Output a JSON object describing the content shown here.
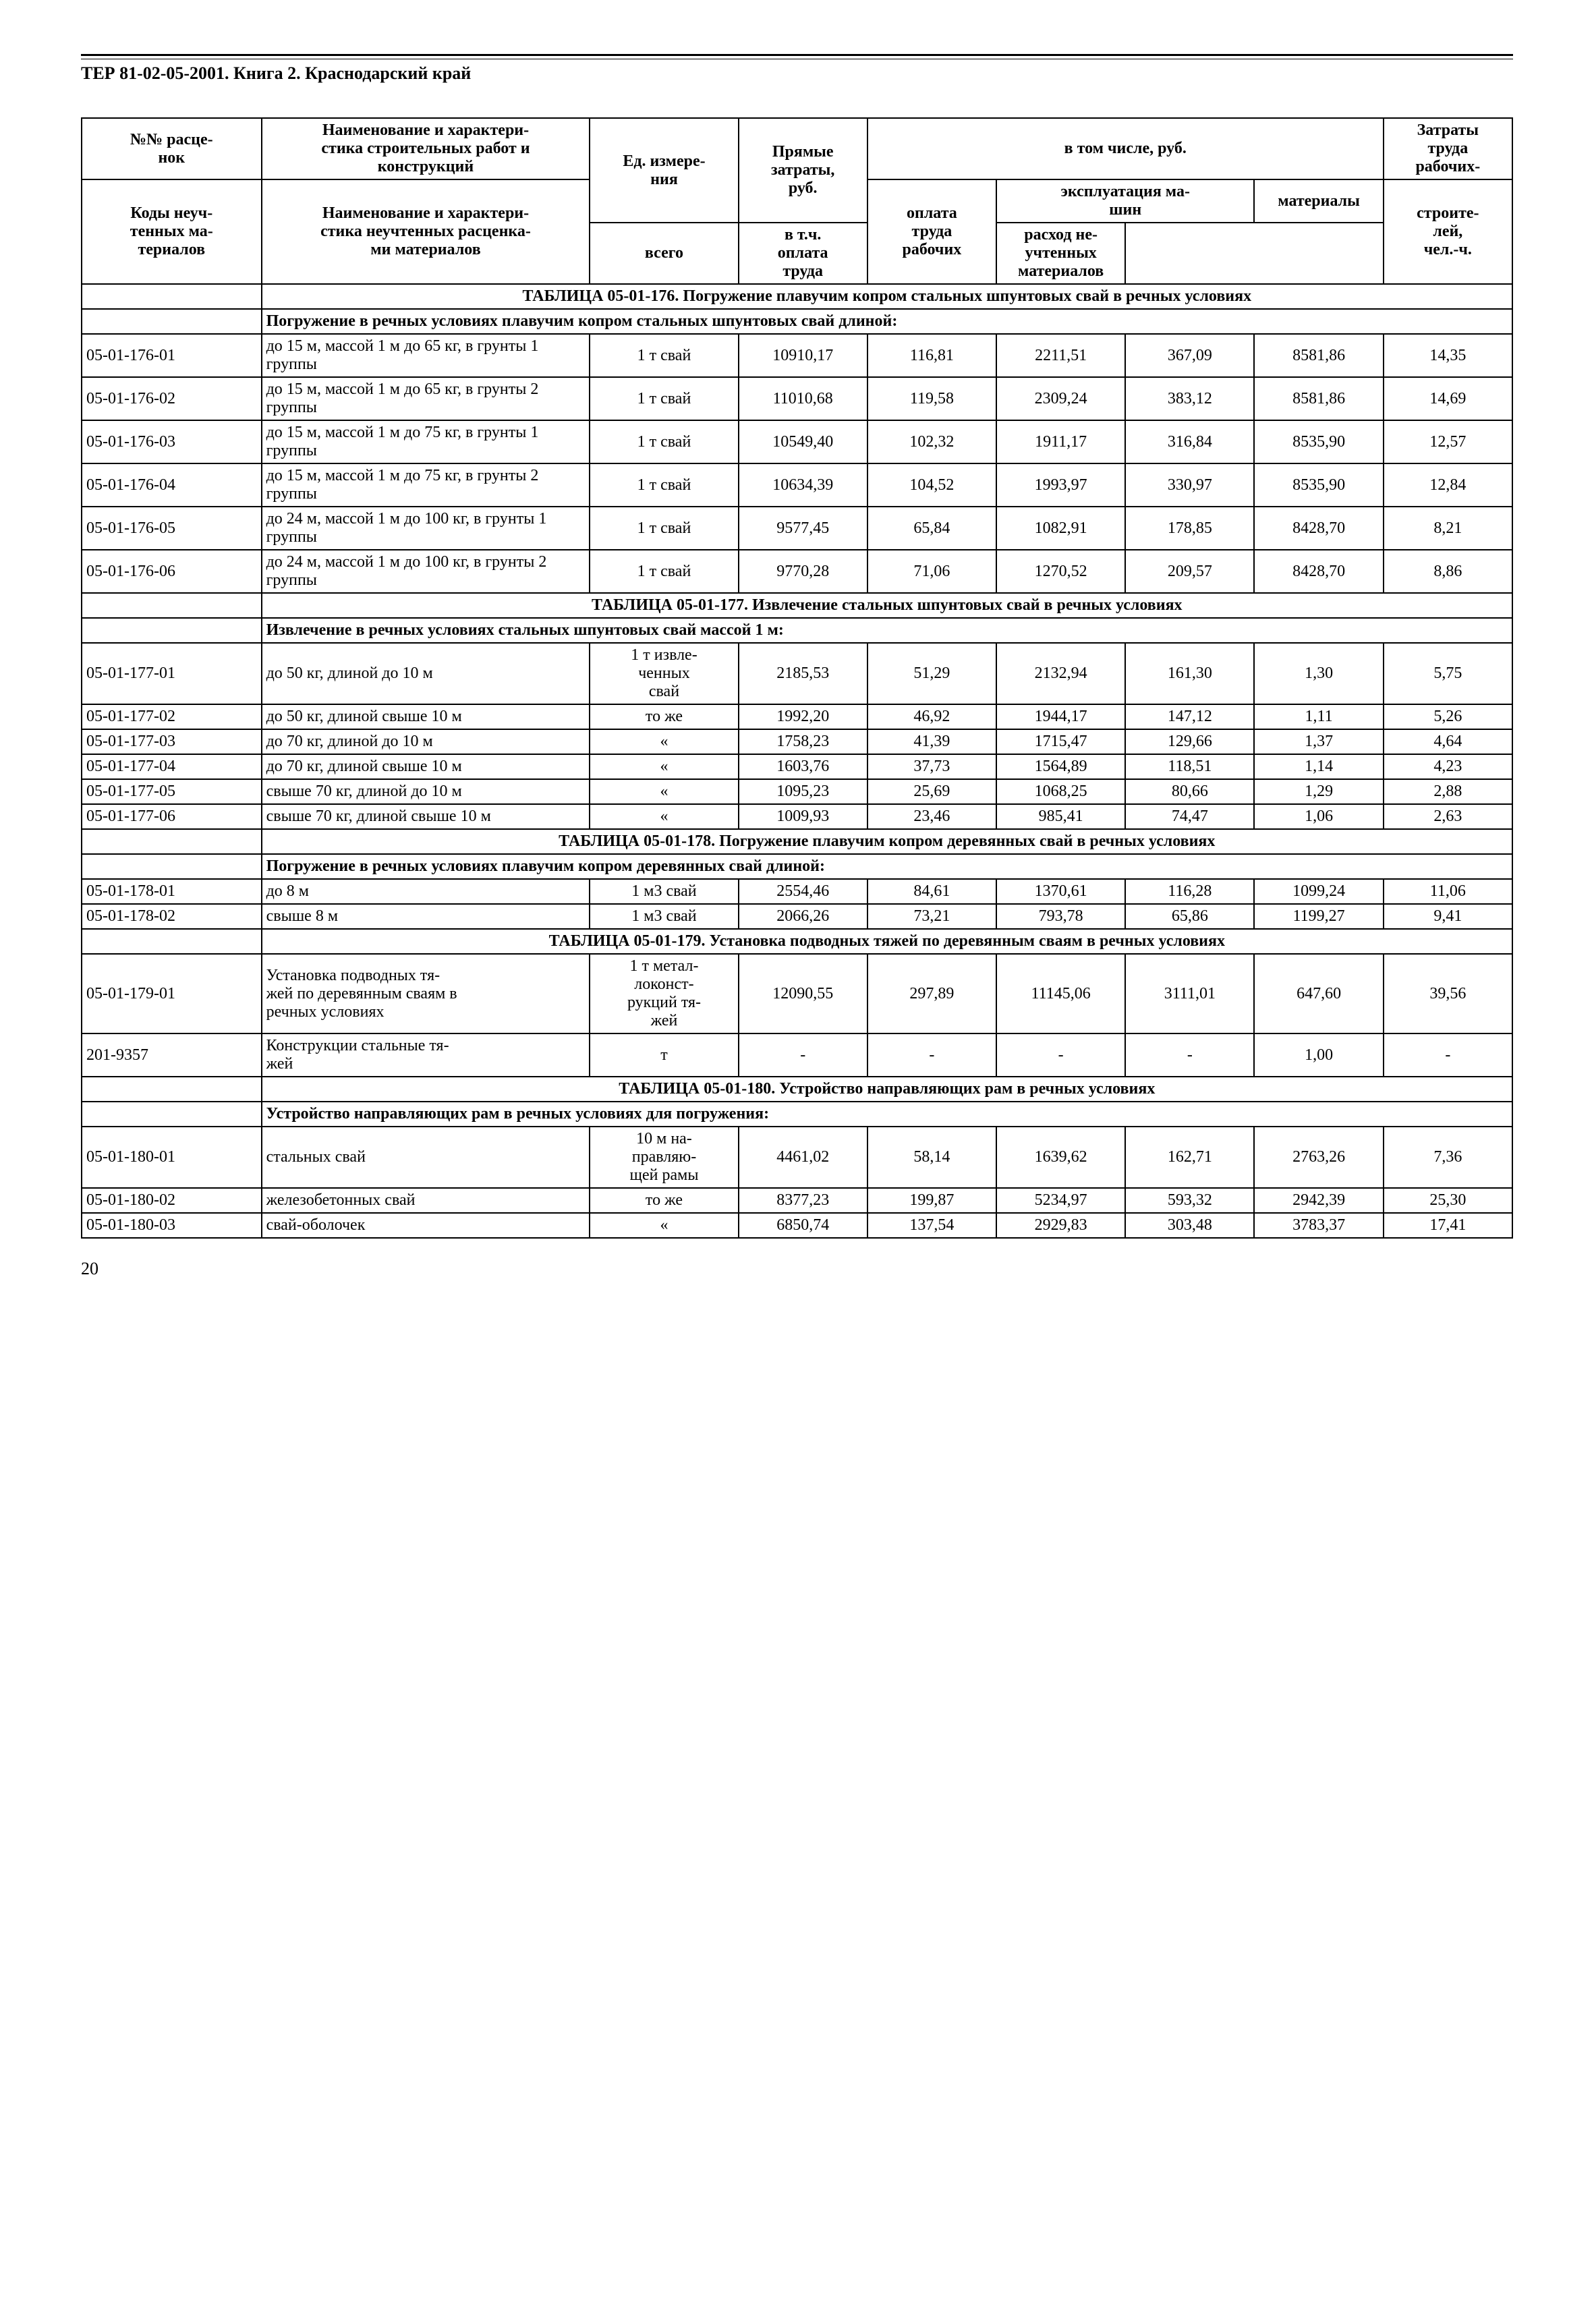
{
  "document_title": "ТЕР 81-02-05-2001. Книга 2.  Краснодарский край",
  "page_number": "20",
  "header": {
    "col1_a": "№№ расце-\nнок",
    "col1_b": "Коды неуч-\nтенных ма-\nтериалов",
    "col2_a": "Наименование и характери-\nстика строительных работ и\nконструкций",
    "col2_b": "Наименование и характери-\nстика неучтенных расценка-\nми материалов",
    "col3": "Ед. измере-\nния",
    "col4": "Прямые\nзатраты,\nруб.",
    "group": "в том числе, руб.",
    "col5": "оплата\nтруда\nрабочих",
    "exp_group": "эксплуатация ма-\nшин",
    "col6": "всего",
    "col7": "в т.ч.\nоплата\nтруда",
    "col8": "материалы",
    "col8b": "расход не-\nучтенных\nматериалов",
    "col9a": "Затраты\nтруда\nрабочих-",
    "col9b": "строите-\nлей,\nчел.-ч."
  },
  "tables": [
    {
      "title": "ТАБЛИЦА  05-01-176. Погружение плавучим копром стальных шпунтовых свай в речных условиях",
      "subtitle": "Погружение в речных условиях плавучим копром стальных шпунтовых свай длиной:",
      "rows": [
        {
          "code": "05-01-176-01",
          "desc": "до 15 м, массой 1 м до 65 кг, в грунты 1 группы",
          "unit": "1 т свай",
          "v": [
            "10910,17",
            "116,81",
            "2211,51",
            "367,09",
            "8581,86",
            "14,35"
          ]
        },
        {
          "code": "05-01-176-02",
          "desc": "до 15 м, массой 1 м до 65 кг, в грунты 2 группы",
          "unit": "1 т свай",
          "v": [
            "11010,68",
            "119,58",
            "2309,24",
            "383,12",
            "8581,86",
            "14,69"
          ]
        },
        {
          "code": "05-01-176-03",
          "desc": "до 15 м, массой 1 м до 75 кг, в грунты 1 группы",
          "unit": "1 т свай",
          "v": [
            "10549,40",
            "102,32",
            "1911,17",
            "316,84",
            "8535,90",
            "12,57"
          ]
        },
        {
          "code": "05-01-176-04",
          "desc": "до 15 м, массой 1 м до 75 кг, в грунты 2 группы",
          "unit": "1 т свай",
          "v": [
            "10634,39",
            "104,52",
            "1993,97",
            "330,97",
            "8535,90",
            "12,84"
          ]
        },
        {
          "code": "05-01-176-05",
          "desc": "до 24 м, массой 1 м до 100 кг, в грунты 1 группы",
          "unit": "1 т свай",
          "v": [
            "9577,45",
            "65,84",
            "1082,91",
            "178,85",
            "8428,70",
            "8,21"
          ]
        },
        {
          "code": "05-01-176-06",
          "desc": "до 24 м, массой 1 м до 100 кг, в грунты 2 группы",
          "unit": "1 т свай",
          "v": [
            "9770,28",
            "71,06",
            "1270,52",
            "209,57",
            "8428,70",
            "8,86"
          ]
        }
      ]
    },
    {
      "title": "ТАБЛИЦА  05-01-177. Извлечение стальных шпунтовых свай в речных условиях",
      "subtitle": "Извлечение в речных условиях стальных шпунтовых свай массой 1 м:",
      "rows": [
        {
          "code": "05-01-177-01",
          "desc": "до 50 кг, длиной до 10 м",
          "unit": "1 т извле-\nченных\nсвай",
          "v": [
            "2185,53",
            "51,29",
            "2132,94",
            "161,30",
            "1,30",
            "5,75"
          ]
        },
        {
          "code": "05-01-177-02",
          "desc": "до 50 кг, длиной свыше 10 м",
          "unit": "то же",
          "v": [
            "1992,20",
            "46,92",
            "1944,17",
            "147,12",
            "1,11",
            "5,26"
          ]
        },
        {
          "code": "05-01-177-03",
          "desc": "до 70 кг, длиной до 10 м",
          "unit": "«",
          "v": [
            "1758,23",
            "41,39",
            "1715,47",
            "129,66",
            "1,37",
            "4,64"
          ]
        },
        {
          "code": "05-01-177-04",
          "desc": "до 70 кг, длиной свыше 10 м",
          "unit": "«",
          "v": [
            "1603,76",
            "37,73",
            "1564,89",
            "118,51",
            "1,14",
            "4,23"
          ]
        },
        {
          "code": "05-01-177-05",
          "desc": "свыше 70 кг, длиной до 10 м",
          "unit": "«",
          "v": [
            "1095,23",
            "25,69",
            "1068,25",
            "80,66",
            "1,29",
            "2,88"
          ]
        },
        {
          "code": "05-01-177-06",
          "desc": "свыше 70 кг, длиной свыше 10 м",
          "unit": "«",
          "v": [
            "1009,93",
            "23,46",
            "985,41",
            "74,47",
            "1,06",
            "2,63"
          ]
        }
      ]
    },
    {
      "title": "ТАБЛИЦА  05-01-178. Погружение плавучим копром деревянных свай в речных условиях",
      "subtitle": "Погружение в речных условиях плавучим копром деревянных свай длиной:",
      "rows": [
        {
          "code": "05-01-178-01",
          "desc": "до 8 м",
          "unit": "1 м3 свай",
          "v": [
            "2554,46",
            "84,61",
            "1370,61",
            "116,28",
            "1099,24",
            "11,06"
          ]
        },
        {
          "code": "05-01-178-02",
          "desc": "свыше 8 м",
          "unit": "1 м3 свай",
          "v": [
            "2066,26",
            "73,21",
            "793,78",
            "65,86",
            "1199,27",
            "9,41"
          ]
        }
      ]
    },
    {
      "title": "ТАБЛИЦА  05-01-179. Установка подводных тяжей по деревянным сваям в речных условиях",
      "subtitle": null,
      "rows": [
        {
          "code": "05-01-179-01",
          "desc": "Установка подводных тя-\nжей по деревянным сваям в\nречных условиях",
          "unit": "1 т метал-\nлоконст-\nрукций тя-\nжей",
          "v": [
            "12090,55",
            "297,89",
            "11145,06",
            "3111,01",
            "647,60",
            "39,56"
          ]
        },
        {
          "code": "201-9357",
          "desc": "Конструкции стальные тя-\nжей",
          "unit": "т",
          "v": [
            "-",
            "-",
            "-",
            "-",
            "1,00",
            "-"
          ]
        }
      ]
    },
    {
      "title": "ТАБЛИЦА  05-01-180. Устройство направляющих рам в речных условиях",
      "subtitle": "Устройство направляющих рам в речных условиях для погружения:",
      "rows": [
        {
          "code": "05-01-180-01",
          "desc": "стальных свай",
          "unit": "10 м на-\nправляю-\nщей рамы",
          "v": [
            "4461,02",
            "58,14",
            "1639,62",
            "162,71",
            "2763,26",
            "7,36"
          ]
        },
        {
          "code": "05-01-180-02",
          "desc": "железобетонных свай",
          "unit": "то же",
          "v": [
            "8377,23",
            "199,87",
            "5234,97",
            "593,32",
            "2942,39",
            "25,30"
          ]
        },
        {
          "code": "05-01-180-03",
          "desc": "свай-оболочек",
          "unit": "«",
          "v": [
            "6850,74",
            "137,54",
            "2929,83",
            "303,48",
            "3783,37",
            "17,41"
          ]
        }
      ]
    }
  ]
}
